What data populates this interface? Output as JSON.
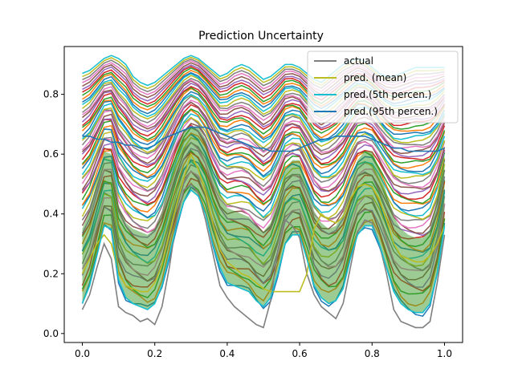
{
  "chart_data": {
    "type": "line",
    "title": "Prediction  Uncertainty",
    "xlabel": "",
    "ylabel": "",
    "xlim": [
      -0.05,
      1.05
    ],
    "ylim": [
      -0.03,
      0.96
    ],
    "x_ticks": [
      "0.0",
      "0.2",
      "0.4",
      "0.6",
      "0.8",
      "1.0"
    ],
    "y_ticks": [
      "0.0",
      "0.2",
      "0.4",
      "0.6",
      "0.8"
    ],
    "grid": false,
    "legend_position": "top-right",
    "legend": [
      {
        "label": "actual",
        "color": "#7f7f7f"
      },
      {
        "label": "pred. (mean)",
        "color": "#bcbd22"
      },
      {
        "label": "pred.(5th percen.)",
        "color": "#17becf"
      },
      {
        "label": "pred.(95th percen.)",
        "color": "#1f77b4"
      }
    ],
    "band": {
      "color": "#3a9a2a",
      "opacity": 0.5
    },
    "palette": [
      "#1f77b4",
      "#ff7f0e",
      "#2ca02c",
      "#d62728",
      "#9467bd",
      "#8c564b",
      "#e377c2",
      "#7f7f7f",
      "#bcbd22",
      "#17becf"
    ],
    "sample_curve_count": 60,
    "series": [
      {
        "name": "actual",
        "color": "#7f7f7f",
        "x": [
          0,
          0.02,
          0.04,
          0.06,
          0.08,
          0.1,
          0.12,
          0.14,
          0.16,
          0.18,
          0.2,
          0.22,
          0.24,
          0.26,
          0.28,
          0.3,
          0.32,
          0.34,
          0.36,
          0.38,
          0.4,
          0.42,
          0.44,
          0.46,
          0.48,
          0.5,
          0.52,
          0.54,
          0.56,
          0.58,
          0.6,
          0.62,
          0.64,
          0.66,
          0.68,
          0.7,
          0.72,
          0.74,
          0.76,
          0.78,
          0.8,
          0.82,
          0.84,
          0.86,
          0.88,
          0.9,
          0.92,
          0.94,
          0.96,
          0.98,
          1.0
        ],
        "values": [
          0.08,
          0.13,
          0.22,
          0.3,
          0.25,
          0.09,
          0.07,
          0.06,
          0.04,
          0.05,
          0.03,
          0.09,
          0.22,
          0.38,
          0.48,
          0.5,
          0.47,
          0.38,
          0.27,
          0.16,
          0.12,
          0.09,
          0.07,
          0.05,
          0.03,
          0.02,
          0.11,
          0.28,
          0.38,
          0.36,
          0.32,
          0.2,
          0.13,
          0.09,
          0.07,
          0.05,
          0.1,
          0.22,
          0.34,
          0.38,
          0.37,
          0.3,
          0.2,
          0.08,
          0.04,
          0.03,
          0.02,
          0.02,
          0.04,
          0.17,
          0.33
        ]
      },
      {
        "name": "pred. (mean)",
        "color": "#bcbd22",
        "x": [
          0,
          0.02,
          0.04,
          0.06,
          0.08,
          0.1,
          0.12,
          0.14,
          0.16,
          0.18,
          0.2,
          0.22,
          0.24,
          0.26,
          0.28,
          0.3,
          0.32,
          0.34,
          0.36,
          0.38,
          0.4,
          0.42,
          0.44,
          0.46,
          0.48,
          0.5,
          0.52,
          0.54,
          0.56,
          0.58,
          0.6,
          0.62,
          0.64,
          0.66,
          0.68,
          0.7,
          0.72,
          0.74,
          0.76,
          0.78,
          0.8,
          0.82,
          0.84,
          0.86,
          0.88,
          0.9,
          0.92,
          0.94,
          0.96,
          0.98,
          1.0
        ],
        "values": [
          0.2,
          0.25,
          0.3,
          0.33,
          0.3,
          0.2,
          0.16,
          0.15,
          0.14,
          0.14,
          0.17,
          0.23,
          0.33,
          0.43,
          0.52,
          0.6,
          0.55,
          0.47,
          0.37,
          0.28,
          0.24,
          0.22,
          0.2,
          0.19,
          0.17,
          0.15,
          0.14,
          0.14,
          0.14,
          0.14,
          0.14,
          0.2,
          0.35,
          0.4,
          0.38,
          0.37,
          0.39,
          0.45,
          0.49,
          0.5,
          0.49,
          0.45,
          0.38,
          0.3,
          0.26,
          0.25,
          0.24,
          0.24,
          0.26,
          0.3,
          0.36
        ]
      },
      {
        "name": "pred.(5th percen.)",
        "color": "#17becf",
        "x": [
          0,
          0.02,
          0.04,
          0.06,
          0.08,
          0.1,
          0.12,
          0.14,
          0.16,
          0.18,
          0.2,
          0.22,
          0.24,
          0.26,
          0.28,
          0.3,
          0.32,
          0.34,
          0.36,
          0.38,
          0.4,
          0.42,
          0.44,
          0.46,
          0.48,
          0.5,
          0.52,
          0.54,
          0.56,
          0.58,
          0.6,
          0.62,
          0.64,
          0.66,
          0.68,
          0.7,
          0.72,
          0.74,
          0.76,
          0.78,
          0.8,
          0.82,
          0.84,
          0.86,
          0.88,
          0.9,
          0.92,
          0.94,
          0.96,
          0.98,
          1.0
        ],
        "values": [
          0.1,
          0.16,
          0.26,
          0.36,
          0.35,
          0.18,
          0.12,
          0.1,
          0.09,
          0.08,
          0.1,
          0.16,
          0.26,
          0.36,
          0.44,
          0.48,
          0.46,
          0.4,
          0.3,
          0.22,
          0.17,
          0.16,
          0.15,
          0.14,
          0.11,
          0.09,
          0.12,
          0.2,
          0.3,
          0.33,
          0.33,
          0.25,
          0.16,
          0.12,
          0.1,
          0.11,
          0.15,
          0.25,
          0.33,
          0.36,
          0.36,
          0.3,
          0.22,
          0.14,
          0.1,
          0.08,
          0.07,
          0.07,
          0.1,
          0.2,
          0.36
        ]
      },
      {
        "name": "pred.(95th percen.)",
        "color": "#1f77b4",
        "x": [
          0,
          0.02,
          0.04,
          0.06,
          0.08,
          0.1,
          0.12,
          0.14,
          0.16,
          0.18,
          0.2,
          0.22,
          0.24,
          0.26,
          0.28,
          0.3,
          0.32,
          0.34,
          0.36,
          0.38,
          0.4,
          0.42,
          0.44,
          0.46,
          0.48,
          0.5,
          0.52,
          0.54,
          0.56,
          0.58,
          0.6,
          0.62,
          0.64,
          0.66,
          0.68,
          0.7,
          0.72,
          0.74,
          0.76,
          0.78,
          0.8,
          0.82,
          0.84,
          0.86,
          0.88,
          0.9,
          0.92,
          0.94,
          0.96,
          0.98,
          1.0
        ],
        "values": [
          0.66,
          0.66,
          0.65,
          0.65,
          0.64,
          0.64,
          0.63,
          0.63,
          0.62,
          0.62,
          0.63,
          0.65,
          0.66,
          0.67,
          0.68,
          0.69,
          0.69,
          0.69,
          0.68,
          0.67,
          0.66,
          0.65,
          0.64,
          0.63,
          0.62,
          0.62,
          0.61,
          0.61,
          0.61,
          0.61,
          0.62,
          0.63,
          0.64,
          0.65,
          0.65,
          0.66,
          0.66,
          0.66,
          0.66,
          0.66,
          0.65,
          0.64,
          0.63,
          0.62,
          0.62,
          0.61,
          0.61,
          0.61,
          0.61,
          0.61,
          0.62
        ]
      }
    ],
    "band_between": [
      "pred.(5th percen.)",
      "pred.(95th percen.)"
    ],
    "envelope_top": [
      0.87,
      0.88,
      0.9,
      0.92,
      0.93,
      0.92,
      0.9,
      0.86,
      0.84,
      0.83,
      0.84,
      0.86,
      0.88,
      0.9,
      0.92,
      0.93,
      0.92,
      0.9,
      0.88,
      0.86,
      0.87,
      0.89,
      0.9,
      0.89,
      0.87,
      0.85,
      0.86,
      0.88,
      0.9,
      0.9,
      0.89,
      0.87,
      0.85,
      0.84,
      0.86,
      0.88,
      0.9,
      0.91,
      0.92,
      0.91,
      0.89,
      0.87,
      0.86,
      0.86,
      0.87,
      0.88,
      0.89,
      0.89,
      0.89,
      0.89,
      0.89
    ]
  }
}
